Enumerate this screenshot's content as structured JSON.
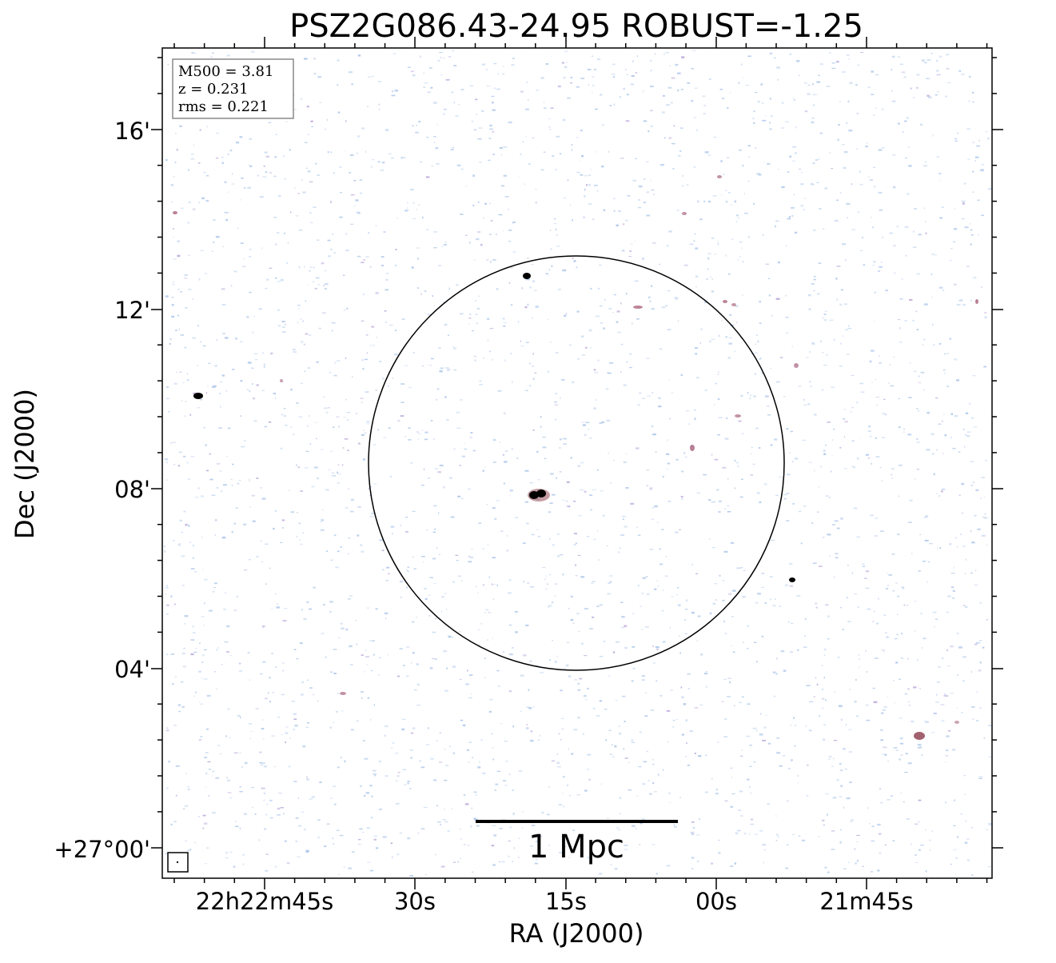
{
  "title": "PSZ2G086.43-24.95 ROBUST=-1.25",
  "axes": {
    "xlabel": "RA (J2000)",
    "ylabel": "Dec (J2000)",
    "x_ticks": [
      "22h22m45s",
      "30s",
      "15s",
      "00s",
      "21m45s"
    ],
    "y_ticks": [
      "16'",
      "12'",
      "08'",
      "04'",
      "+27°00'"
    ]
  },
  "info_box": {
    "m500": "M500 = 3.81",
    "z": "z = 0.231",
    "rms": "rms = 0.221"
  },
  "scale_bar": {
    "label": "1 Mpc"
  },
  "colors": {
    "noise_blue": "#a9c4e8",
    "noise_purple": "#b7a2d8",
    "source_red": "#8b3a4a",
    "source_core": "#000000"
  }
}
